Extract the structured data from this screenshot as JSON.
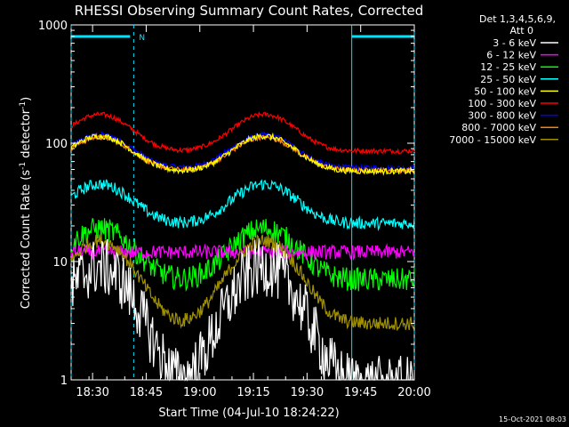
{
  "chart_data": {
    "type": "line",
    "title": "RHESSI Observing Summary Count Rates, Corrected",
    "xlabel": "Start Time (04-Jul-10 18:24:22)",
    "ylabel_main": "Corrected Count Rate (s",
    "ylabel_sup1": "-1",
    "ylabel_mid": " detector",
    "ylabel_sup2": "-1",
    "ylabel_end": ")",
    "y_scale": "log",
    "ylim": [
      1,
      1000
    ],
    "xlim_min": [
      5,
      62
    ],
    "x_ticks": [
      {
        "min": 6,
        "label": "18:30"
      },
      {
        "min": 21,
        "label": "18:45"
      },
      {
        "min": 36,
        "label": "19:00"
      },
      {
        "min": 51,
        "label": "19:15"
      },
      {
        "min": 66,
        "label": "19:30"
      },
      {
        "min": 81,
        "label": "19:45"
      },
      {
        "min": 96,
        "label": "20:00"
      }
    ],
    "x_range_minutes": [
      0,
      96
    ],
    "y_ticks": [
      {
        "value": 1,
        "label": "1"
      },
      {
        "value": 10,
        "label": "10"
      },
      {
        "value": 100,
        "label": "100"
      },
      {
        "value": 1000,
        "label": "1000"
      }
    ],
    "legend_header": [
      "Det 1,3,4,5,6,9,",
      "Att 0"
    ],
    "legend_position": "top-right",
    "series": [
      {
        "name": "3 - 6 keV",
        "color": "#ffffff",
        "kind": "orbit",
        "peak": 9,
        "base": 0.9,
        "noise": 0.5
      },
      {
        "name": "6 - 12 keV",
        "color": "#ff00ff",
        "kind": "flat",
        "level": 12,
        "noise": 0.12
      },
      {
        "name": "12 - 25 keV",
        "color": "#00ff00",
        "kind": "orbit",
        "peak": 19,
        "base": 7,
        "noise": 0.2
      },
      {
        "name": "25 - 50 keV",
        "color": "#00ffff",
        "kind": "orbit",
        "peak": 45,
        "base": 21,
        "noise": 0.1
      },
      {
        "name": "50 - 100 keV",
        "color": "#ffff00",
        "kind": "orbit",
        "peak": 115,
        "base": 58,
        "noise": 0.05
      },
      {
        "name": "100 - 300 keV",
        "color": "#ff0000",
        "kind": "orbit",
        "peak": 175,
        "base": 86,
        "noise": 0.04
      },
      {
        "name": "300 - 800 keV",
        "color": "#0000ff",
        "kind": "orbit",
        "peak": 118,
        "base": 62,
        "noise": 0.04
      },
      {
        "name": "800 - 7000 keV",
        "color": "#ff8000",
        "kind": "orbit",
        "peak": 112,
        "base": 59,
        "noise": 0.04
      },
      {
        "name": "7000 - 15000 keV",
        "color": "#a09000",
        "kind": "orbit",
        "peak": 15,
        "base": 3,
        "noise": 0.12
      }
    ],
    "orbit": {
      "peak1_min": 8,
      "peak2_min": 54,
      "width_min": 11
    },
    "annotations": {
      "bar_left": {
        "from_min": 0,
        "to_min": 16.5,
        "label": "N"
      },
      "bar_right": {
        "from_min": 78.5,
        "to_min": 96
      },
      "vlines_dashed_min": [
        0,
        17.5,
        96
      ],
      "vlines_solid_min": [
        78.5
      ]
    },
    "footer_date": "15-Oct-2021 08:03"
  }
}
